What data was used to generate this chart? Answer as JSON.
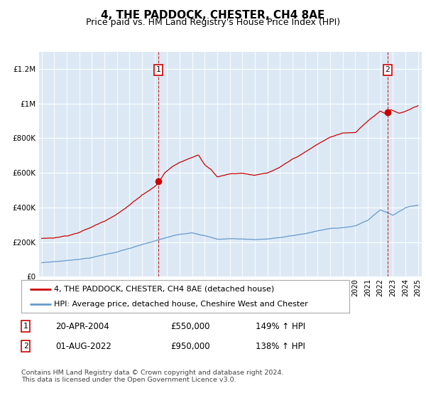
{
  "title": "4, THE PADDOCK, CHESTER, CH4 8AE",
  "subtitle": "Price paid vs. HM Land Registry's House Price Index (HPI)",
  "legend_line1": "4, THE PADDOCK, CHESTER, CH4 8AE (detached house)",
  "legend_line2": "HPI: Average price, detached house, Cheshire West and Chester",
  "annotation1_label": "1",
  "annotation1_date": "20-APR-2004",
  "annotation1_price": "£550,000",
  "annotation1_hpi": "149% ↑ HPI",
  "annotation2_label": "2",
  "annotation2_date": "01-AUG-2022",
  "annotation2_price": "£950,000",
  "annotation2_hpi": "138% ↑ HPI",
  "footer": "Contains HM Land Registry data © Crown copyright and database right 2024.\nThis data is licensed under the Open Government Licence v3.0.",
  "background_color": "#dce9f5",
  "red_color": "#cc0000",
  "blue_color": "#6699cc",
  "marker1_x_year": 2004.29,
  "marker2_x_year": 2022.58,
  "marker1_y": 550000,
  "marker2_y": 950000,
  "ylim": [
    0,
    1300000
  ],
  "xlim_start": 1994.8,
  "xlim_end": 2025.3
}
